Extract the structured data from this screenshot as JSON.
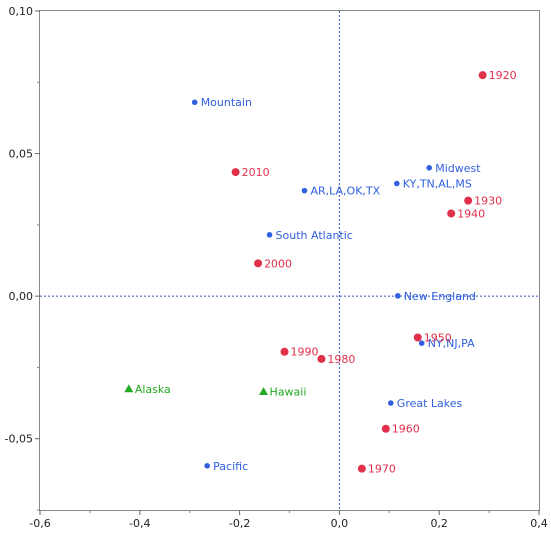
{
  "chart_data": {
    "type": "scatter",
    "xlim": [
      -0.6,
      0.4
    ],
    "ylim": [
      -0.075,
      0.1
    ],
    "xticks": [
      -0.6,
      -0.4,
      -0.2,
      0.0,
      0.2,
      0.4
    ],
    "xtick_labels": [
      "-0,6",
      "-0,4",
      "-0,2",
      "0,0",
      "0,2",
      "0,4"
    ],
    "yticks": [
      -0.05,
      0.0,
      0.05,
      0.1
    ],
    "ytick_labels": [
      "-0,05",
      "0,00",
      "0,05",
      "0,10"
    ],
    "reference_lines": {
      "x": 0.0,
      "y": 0.0,
      "style": "dotted",
      "color": "#3355cc"
    },
    "grid": false,
    "legend": "none",
    "series": [
      {
        "color": "#3060e0",
        "marker": "circle-small",
        "points": [
          {
            "label": "Mountain",
            "x": -0.29,
            "y": 0.068
          },
          {
            "label": "AR,LA,OK,TX",
            "x": -0.07,
            "y": 0.037
          },
          {
            "label": "South Atlantic",
            "x": -0.14,
            "y": 0.0215
          },
          {
            "label": "Midwest",
            "x": 0.18,
            "y": 0.045
          },
          {
            "label": "KY,TN,AL,MS",
            "x": 0.115,
            "y": 0.0395
          },
          {
            "label": "New England",
            "x": 0.117,
            "y": 0.0001
          },
          {
            "label": "NY,NJ,PA",
            "x": 0.165,
            "y": -0.0165
          },
          {
            "label": "Great Lakes",
            "x": 0.103,
            "y": -0.0375
          },
          {
            "label": "Pacific",
            "x": -0.265,
            "y": -0.0595
          }
        ]
      },
      {
        "color": "#e0304a",
        "marker": "circle",
        "points": [
          {
            "label": "1920",
            "x": 0.287,
            "y": 0.0775
          },
          {
            "label": "2010",
            "x": -0.208,
            "y": 0.0435
          },
          {
            "label": "1930",
            "x": 0.258,
            "y": 0.0335
          },
          {
            "label": "1940",
            "x": 0.224,
            "y": 0.029
          },
          {
            "label": "2000",
            "x": -0.163,
            "y": 0.0115
          },
          {
            "label": "1950",
            "x": 0.157,
            "y": -0.0145
          },
          {
            "label": "1990",
            "x": -0.11,
            "y": -0.0195
          },
          {
            "label": "1980",
            "x": -0.036,
            "y": -0.022
          },
          {
            "label": "1960",
            "x": 0.093,
            "y": -0.0465
          },
          {
            "label": "1970",
            "x": 0.045,
            "y": -0.0605
          }
        ]
      },
      {
        "color": "#22aa22",
        "marker": "triangle",
        "points": [
          {
            "label": "Alaska",
            "x": -0.422,
            "y": -0.0325
          },
          {
            "label": "Hawaii",
            "x": -0.152,
            "y": -0.0335
          }
        ]
      }
    ]
  }
}
